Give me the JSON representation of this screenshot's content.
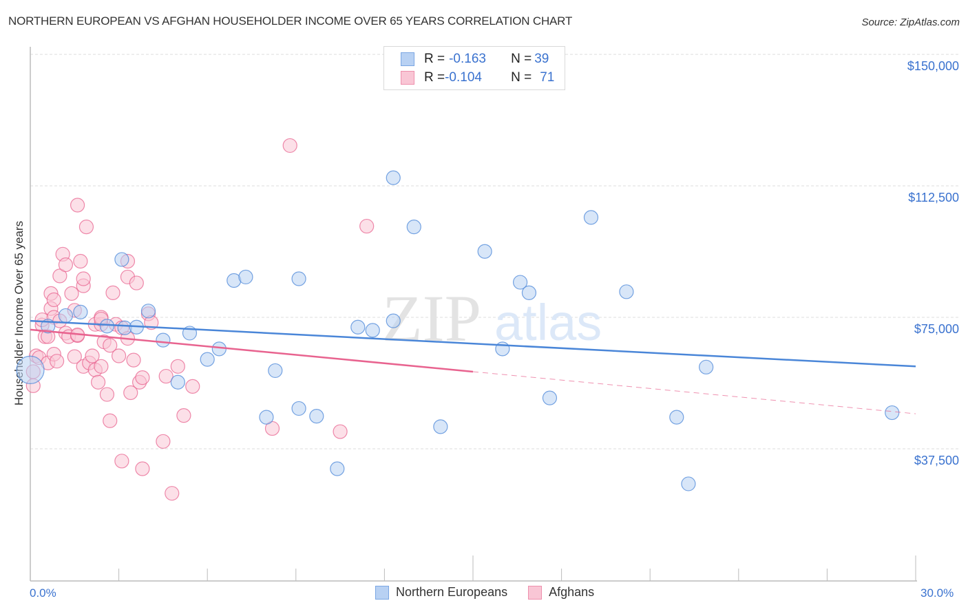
{
  "header": {
    "title": "NORTHERN EUROPEAN VS AFGHAN HOUSEHOLDER INCOME OVER 65 YEARS CORRELATION CHART",
    "source": "Source: ZipAtlas.com"
  },
  "watermark": {
    "zip": "ZIP",
    "atlas": "atlas"
  },
  "legend": {
    "rows": [
      {
        "r_label": "R = ",
        "r_value": "-0.163",
        "n_label": "N = ",
        "n_value": "39",
        "color": "#b8d1f3",
        "border": "#7aa6e3"
      },
      {
        "r_label": "R = ",
        "r_value": "-0.104",
        "n_label": "N = ",
        "n_value": "71",
        "color": "#f9c6d5",
        "border": "#ee8fac"
      }
    ]
  },
  "bottom_legend": [
    {
      "label": "Northern Europeans",
      "color": "#b8d1f3",
      "border": "#7aa6e3"
    },
    {
      "label": "Afghans",
      "color": "#f9c6d5",
      "border": "#ee8fac"
    }
  ],
  "axes": {
    "x_min_label": "0.0%",
    "x_max_label": "30.0%",
    "y_label": "Householder Income Over 65 years",
    "y_ticks": [
      "$150,000",
      "$112,500",
      "$75,000",
      "$37,500"
    ]
  },
  "chart_data": {
    "type": "scatter",
    "title": "NORTHERN EUROPEAN VS AFGHAN HOUSEHOLDER INCOME OVER 65 YEARS CORRELATION CHART",
    "xlabel": "",
    "ylabel": "Householder Income Over 65 years",
    "xlim": [
      0,
      30
    ],
    "ylim": [
      0,
      150000
    ],
    "y_ticks": [
      37500,
      75000,
      112500,
      150000
    ],
    "x_tick_labels": [
      "0.0%",
      "30.0%"
    ],
    "grid": true,
    "legend_position": "top-center",
    "series": [
      {
        "name": "Northern Europeans",
        "color": "#4a86d8",
        "fill": "#b8d1f3",
        "R": -0.163,
        "N": 39,
        "trend": {
          "x": [
            0,
            30
          ],
          "y": [
            74000,
            61000
          ],
          "style": "solid"
        },
        "points": [
          [
            0.0,
            60000,
            20
          ],
          [
            1.2,
            75500
          ],
          [
            1.7,
            76500
          ],
          [
            0.6,
            72500
          ],
          [
            2.6,
            72500
          ],
          [
            3.2,
            72000
          ],
          [
            3.1,
            91500
          ],
          [
            4.0,
            76800
          ],
          [
            3.6,
            72200
          ],
          [
            4.5,
            68500
          ],
          [
            5.0,
            56500
          ],
          [
            5.4,
            70500
          ],
          [
            6.0,
            63000
          ],
          [
            6.4,
            66000
          ],
          [
            6.9,
            85500
          ],
          [
            7.3,
            86500
          ],
          [
            8.3,
            59800
          ],
          [
            8.0,
            46500
          ],
          [
            9.1,
            86000
          ],
          [
            9.1,
            49000
          ],
          [
            9.7,
            46800
          ],
          [
            10.4,
            31800
          ],
          [
            11.1,
            72200
          ],
          [
            11.6,
            71300
          ],
          [
            12.3,
            74000
          ],
          [
            12.3,
            114800
          ],
          [
            13.0,
            100800
          ],
          [
            13.9,
            43800
          ],
          [
            15.4,
            93800
          ],
          [
            16.0,
            66000
          ],
          [
            16.6,
            85000
          ],
          [
            16.9,
            82000
          ],
          [
            17.6,
            52000
          ],
          [
            19.0,
            103500
          ],
          [
            20.2,
            82300
          ],
          [
            21.9,
            46500
          ],
          [
            22.3,
            27500
          ],
          [
            22.9,
            60800
          ],
          [
            29.2,
            47800
          ]
        ]
      },
      {
        "name": "Afghans",
        "color": "#e8638f",
        "fill": "#f9c6d5",
        "R": -0.104,
        "N": 71,
        "trend": {
          "x": [
            0,
            15
          ],
          "y": [
            71500,
            59500
          ],
          "style": "solid",
          "extend_to": [
            30,
            47500
          ],
          "extend_style": "dashed"
        },
        "points": [
          [
            0.1,
            55500
          ],
          [
            0.1,
            59500
          ],
          [
            0.2,
            64000
          ],
          [
            0.3,
            63500
          ],
          [
            0.4,
            72800
          ],
          [
            0.4,
            74300
          ],
          [
            0.5,
            69500
          ],
          [
            0.6,
            69500
          ],
          [
            0.6,
            62000
          ],
          [
            0.7,
            81800
          ],
          [
            0.7,
            77500
          ],
          [
            0.8,
            75000
          ],
          [
            0.8,
            64500
          ],
          [
            0.8,
            80000
          ],
          [
            0.9,
            62500
          ],
          [
            1.0,
            74000
          ],
          [
            1.0,
            86800
          ],
          [
            1.1,
            93000
          ],
          [
            1.2,
            90000
          ],
          [
            1.2,
            70500
          ],
          [
            1.3,
            69500
          ],
          [
            1.4,
            81800
          ],
          [
            1.5,
            77000
          ],
          [
            1.6,
            69800
          ],
          [
            1.6,
            70000
          ],
          [
            1.6,
            107000
          ],
          [
            1.7,
            91000
          ],
          [
            1.8,
            84000
          ],
          [
            1.8,
            86000
          ],
          [
            1.9,
            100800
          ],
          [
            1.8,
            61000
          ],
          [
            2.0,
            62000
          ],
          [
            2.1,
            64000
          ],
          [
            2.2,
            73000
          ],
          [
            2.2,
            60000
          ],
          [
            2.3,
            56500
          ],
          [
            2.4,
            73000
          ],
          [
            2.4,
            61000
          ],
          [
            2.4,
            75000
          ],
          [
            2.5,
            68000
          ],
          [
            2.6,
            53000
          ],
          [
            2.7,
            45500
          ],
          [
            2.7,
            67000
          ],
          [
            2.8,
            82000
          ],
          [
            2.9,
            73000
          ],
          [
            3.0,
            64000
          ],
          [
            3.1,
            72000
          ],
          [
            3.1,
            34000
          ],
          [
            3.3,
            91000
          ],
          [
            3.3,
            69000
          ],
          [
            3.3,
            86500
          ],
          [
            3.4,
            53500
          ],
          [
            3.5,
            62800
          ],
          [
            3.6,
            84800
          ],
          [
            3.7,
            56500
          ],
          [
            3.8,
            57800
          ],
          [
            3.8,
            31800
          ],
          [
            4.0,
            76000
          ],
          [
            4.1,
            73500
          ],
          [
            4.5,
            39600
          ],
          [
            4.6,
            58200
          ],
          [
            4.8,
            24800
          ],
          [
            5.0,
            61000
          ],
          [
            5.2,
            47000
          ],
          [
            5.5,
            55300
          ],
          [
            8.2,
            43300
          ],
          [
            8.8,
            124000
          ],
          [
            10.5,
            42400
          ],
          [
            11.4,
            101000
          ],
          [
            2.4,
            74500
          ],
          [
            1.5,
            63800
          ]
        ]
      }
    ]
  }
}
